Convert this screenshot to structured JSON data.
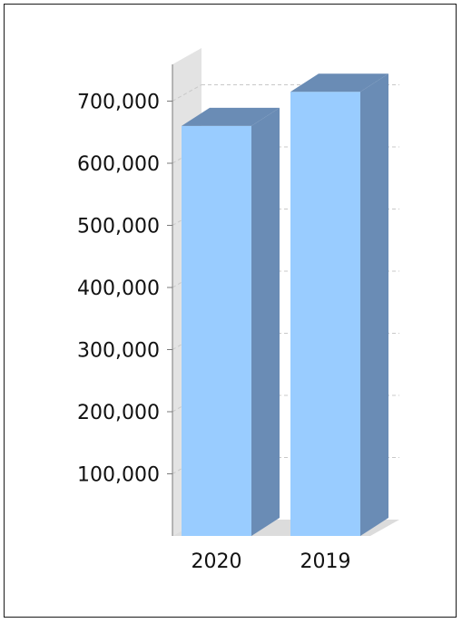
{
  "chart_data": {
    "type": "bar",
    "categories": [
      "2020",
      "2019"
    ],
    "values": [
      660000,
      715000
    ],
    "yticks": [
      "100,000",
      "200,000",
      "300,000",
      "400,000",
      "500,000",
      "600,000",
      "700,000"
    ],
    "ytick_values": [
      100000,
      200000,
      300000,
      400000,
      500000,
      600000,
      700000
    ],
    "ylim": [
      0,
      730000
    ],
    "grid": true,
    "three_d": true,
    "colors": {
      "bar_front": "#99ccff",
      "bar_side": "#6a8cb5",
      "bar_top": "#6a8cb5",
      "wall": "#e3e3e3",
      "floor": "#dcdcdc",
      "grid": "#c8c8c8",
      "axis": "#7a7a7a"
    }
  }
}
